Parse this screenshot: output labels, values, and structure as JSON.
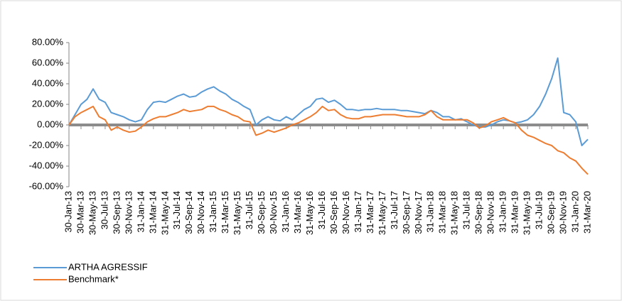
{
  "chart_data": {
    "type": "line",
    "categories": [
      "30-Jan-13",
      null,
      "30-Mar-13",
      null,
      "30-May-13",
      null,
      "30-Jul-13",
      null,
      "30-Sep-13",
      null,
      "30-Nov-13",
      null,
      "31-Jan-14",
      null,
      "31-Mar-14",
      null,
      "31-May-14",
      null,
      "31-Jul-14",
      null,
      "30-Sep-14",
      null,
      "30-Nov-14",
      null,
      "31-Jan-15",
      null,
      "31-Mar-15",
      null,
      "31-May-15",
      null,
      "31-Jul-15",
      null,
      "30-Sep-15",
      null,
      "30-Nov-15",
      null,
      "31-Jan-16",
      null,
      "31-Mar-16",
      null,
      "31-May-16",
      null,
      "31-Jul-16",
      null,
      "30-Sep-16",
      null,
      "30-Nov-16",
      null,
      "31-Jan-17",
      null,
      "31-Mar-17",
      null,
      "31-May-17",
      null,
      "31-Jul-17",
      null,
      "30-Sep-17",
      null,
      "30-Nov-17",
      null,
      "31-Jan-18",
      null,
      "31-Mar-18",
      null,
      "31-May-18",
      null,
      "31-Jul-18",
      null,
      "30-Sep-18",
      null,
      "30-Nov-18",
      null,
      "31-Jan-19",
      null,
      "31-Mar-19",
      null,
      "31-May-19",
      null,
      "31-Jul-19",
      null,
      "30-Sep-19",
      null,
      "30-Nov-19",
      null,
      "31-Jan-20",
      null,
      "31-Mar-20"
    ],
    "series": [
      {
        "name": "ARTHA AGRESSIF",
        "color": "#5b9bd5",
        "values": [
          0,
          10,
          20,
          25,
          35,
          25,
          22,
          12,
          10,
          8,
          5,
          3,
          5,
          15,
          22,
          23,
          22,
          25,
          28,
          30,
          27,
          28,
          32,
          35,
          37,
          33,
          30,
          25,
          22,
          18,
          15,
          0,
          5,
          8,
          5,
          4,
          8,
          5,
          10,
          15,
          18,
          25,
          26,
          22,
          24,
          20,
          15,
          15,
          14,
          15,
          15,
          16,
          15,
          15,
          15,
          14,
          14,
          13,
          12,
          11,
          14,
          12,
          8,
          8,
          5,
          6,
          3,
          0,
          -2,
          -2,
          0,
          3,
          5,
          4,
          2,
          3,
          5,
          10,
          18,
          30,
          45,
          65,
          12,
          10,
          3,
          -20,
          -14
        ]
      },
      {
        "name": "Benchmark*",
        "color": "#ed7d31",
        "values": [
          0,
          8,
          12,
          15,
          18,
          8,
          5,
          -5,
          -2,
          -5,
          -7,
          -6,
          -2,
          3,
          6,
          8,
          8,
          10,
          12,
          15,
          13,
          14,
          15,
          18,
          18,
          15,
          13,
          10,
          8,
          4,
          3,
          -10,
          -8,
          -5,
          -7,
          -5,
          -3,
          0,
          2,
          5,
          8,
          12,
          18,
          14,
          15,
          10,
          7,
          6,
          6,
          8,
          8,
          9,
          10,
          10,
          10,
          9,
          8,
          8,
          8,
          10,
          14,
          8,
          5,
          5,
          5,
          5,
          5,
          2,
          -3,
          -1,
          3,
          5,
          7,
          4,
          2,
          -5,
          -10,
          -12,
          -15,
          -18,
          -20,
          -25,
          -27,
          -32,
          -35,
          -42,
          -48
        ]
      }
    ],
    "ylim": [
      -60,
      80
    ],
    "yticks": [
      {
        "value": -60,
        "label": "-60.00%"
      },
      {
        "value": -40,
        "label": "-40.00%"
      },
      {
        "value": -20,
        "label": "-20.00%"
      },
      {
        "value": 0,
        "label": "0.00%"
      },
      {
        "value": 20,
        "label": "20.00%"
      },
      {
        "value": 40,
        "label": "40.00%"
      },
      {
        "value": 60,
        "label": "60.00%"
      },
      {
        "value": 80,
        "label": "80.00%"
      }
    ],
    "grid": false,
    "legend": "bottom-left"
  }
}
